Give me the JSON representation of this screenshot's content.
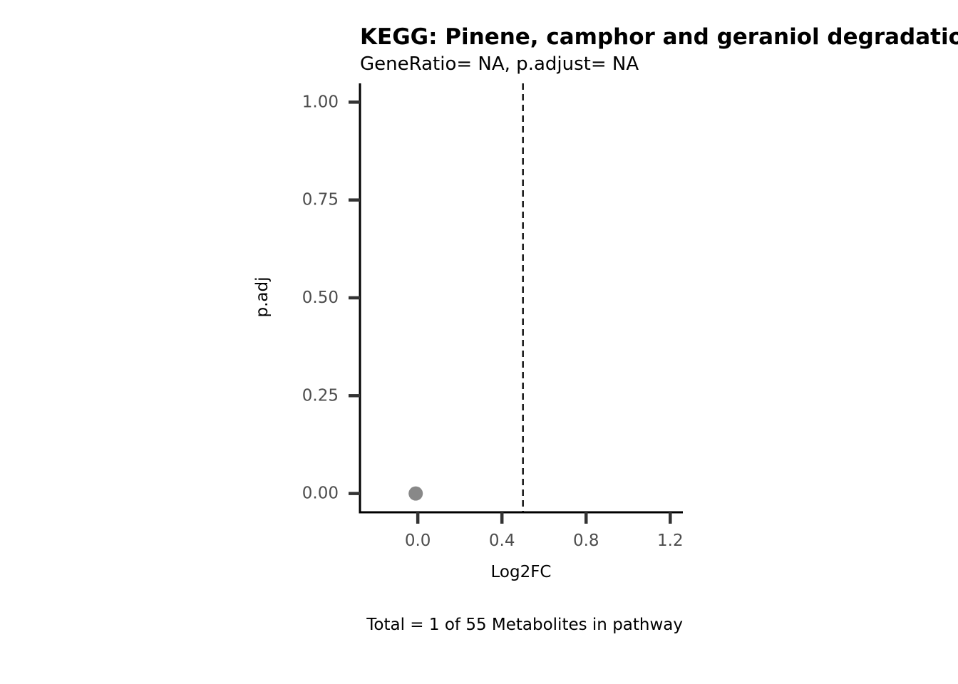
{
  "chart_data": {
    "type": "scatter",
    "title": "KEGG: Pinene, camphor and geraniol degradation",
    "subtitle": "GeneRatio= NA, p.adjust= NA",
    "xlabel": "Log2FC",
    "ylabel": "p.adj",
    "caption": "Total = 1 of 55 Metabolites in pathway",
    "xlim": [
      -0.275,
      1.26
    ],
    "ylim": [
      -0.048,
      1.048
    ],
    "x_ticks": [
      0.0,
      0.4,
      0.8,
      1.2
    ],
    "x_tick_labels": [
      "0.0",
      "0.4",
      "0.8",
      "1.2"
    ],
    "y_ticks": [
      0.0,
      0.25,
      0.5,
      0.75,
      1.0
    ],
    "y_tick_labels": [
      "0.00",
      "0.25",
      "0.50",
      "0.75",
      "1.00"
    ],
    "reference_line": {
      "x": 0.5,
      "style": "dashed"
    },
    "points": [
      {
        "x": -0.01,
        "y": 0.0
      }
    ],
    "point_color": "#888888",
    "grid": false,
    "legend": "none"
  }
}
